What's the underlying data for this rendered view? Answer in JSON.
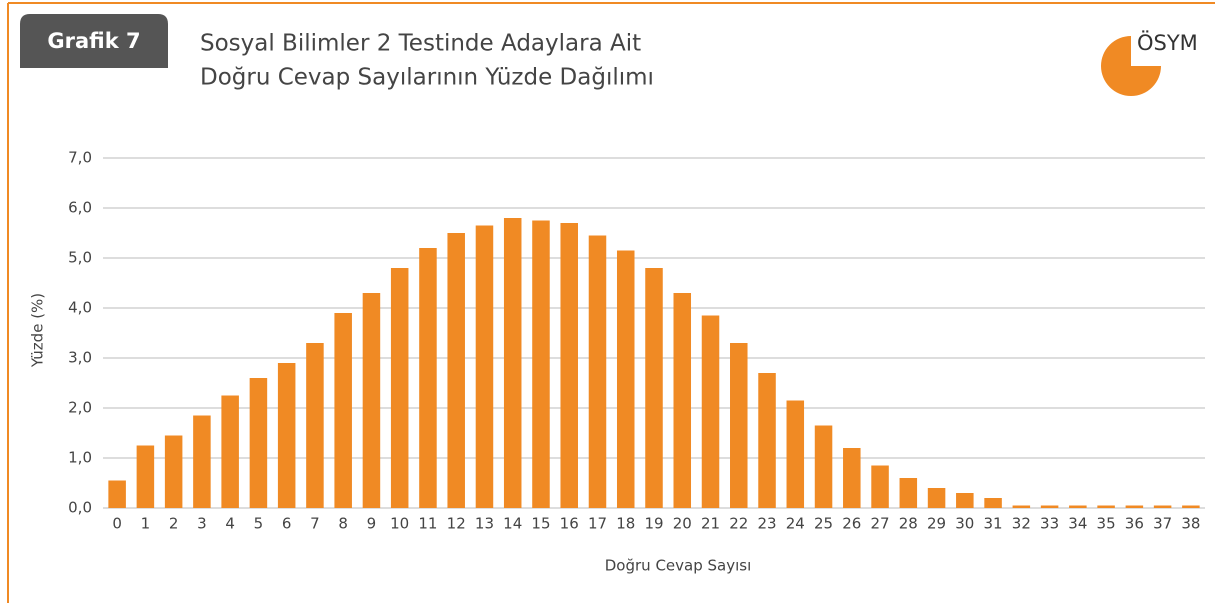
{
  "chart_data": {
    "type": "bar",
    "figure_label": "Grafik 7",
    "title": [
      "Sosyal Bilimler 2 Testinde Adaylara Ait",
      "Doğru Cevap Sayılarının Yüzde Dağılımı"
    ],
    "logo_text": "ÖSYM",
    "x_label": "Doğru Cevap Sayısı",
    "y_label": "Yüzde (%)",
    "categories": [
      "0",
      "1",
      "2",
      "3",
      "4",
      "5",
      "6",
      "7",
      "8",
      "9",
      "10",
      "11",
      "12",
      "13",
      "14",
      "15",
      "16",
      "17",
      "18",
      "19",
      "20",
      "21",
      "22",
      "23",
      "24",
      "25",
      "26",
      "27",
      "28",
      "29",
      "30",
      "31",
      "32",
      "33",
      "34",
      "35",
      "36",
      "37",
      "38"
    ],
    "values": [
      0.55,
      1.25,
      1.45,
      1.85,
      2.25,
      2.6,
      2.9,
      3.3,
      3.9,
      4.3,
      4.8,
      5.2,
      5.5,
      5.65,
      5.8,
      5.75,
      5.7,
      5.45,
      5.15,
      4.8,
      4.3,
      3.85,
      3.3,
      2.7,
      2.15,
      1.65,
      1.2,
      0.85,
      0.6,
      0.4,
      0.3,
      0.2,
      0.05,
      0.05,
      0.05,
      0.05,
      0.05,
      0.05,
      0.05
    ],
    "color": "#f08a24",
    "ylim": [
      0,
      7
    ],
    "yticks": [
      {
        "value": 0,
        "label": "0,0"
      },
      {
        "value": 1,
        "label": "1,0"
      },
      {
        "value": 2,
        "label": "2,0"
      },
      {
        "value": 3,
        "label": "3,0"
      },
      {
        "value": 4,
        "label": "4,0"
      },
      {
        "value": 5,
        "label": "5,0"
      },
      {
        "value": 6,
        "label": "6,0"
      },
      {
        "value": 7,
        "label": "7,0"
      }
    ],
    "grid": true
  }
}
